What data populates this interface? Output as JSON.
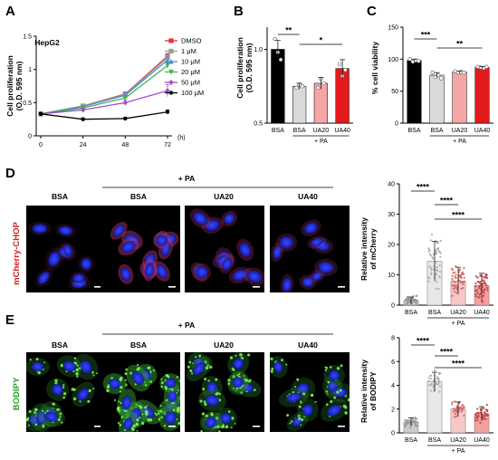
{
  "panel_labels": [
    "A",
    "B",
    "C",
    "D",
    "E"
  ],
  "chart_data": [
    {
      "panel": "A",
      "type": "line",
      "title": "HepG2",
      "xlabel": "(h)",
      "ylabel": [
        "Cell proliferation",
        "(O.D. 595 nm)"
      ],
      "x": [
        0,
        24,
        48,
        72
      ],
      "xticks": [
        "0",
        "24",
        "48",
        "72"
      ],
      "yticks": [
        "0",
        "0.5",
        "1",
        "1.5"
      ],
      "ylim": [
        0,
        1.5
      ],
      "legend_position": "right",
      "series": [
        {
          "name": "DMSO",
          "color": "#e8343a",
          "marker": "square",
          "values": [
            0.33,
            0.45,
            0.63,
            1.2
          ],
          "err": [
            0.02,
            0.02,
            0.03,
            0.04
          ]
        },
        {
          "name": "1 μM",
          "color": "#9a9a9a",
          "marker": "square",
          "values": [
            0.33,
            0.45,
            0.62,
            1.18
          ],
          "err": [
            0.02,
            0.02,
            0.03,
            0.04
          ]
        },
        {
          "name": "10 μM",
          "color": "#4a90d9",
          "marker": "triangle",
          "values": [
            0.33,
            0.44,
            0.61,
            1.14
          ],
          "err": [
            0.02,
            0.02,
            0.04,
            0.05
          ]
        },
        {
          "name": "20 μM",
          "color": "#3cb44b",
          "marker": "triangle-down",
          "values": [
            0.33,
            0.42,
            0.57,
            1.06
          ],
          "err": [
            0.02,
            0.02,
            0.03,
            0.04
          ]
        },
        {
          "name": "50 μM",
          "color": "#a64ac9",
          "marker": "diamond",
          "values": [
            0.33,
            0.39,
            0.5,
            0.68
          ],
          "err": [
            0.02,
            0.02,
            0.04,
            0.09
          ]
        },
        {
          "name": "100 μM",
          "color": "#000000",
          "marker": "circle",
          "values": [
            0.33,
            0.25,
            0.26,
            0.36
          ],
          "err": [
            0.02,
            0.02,
            0.02,
            0.03
          ]
        }
      ]
    },
    {
      "panel": "B",
      "type": "bar",
      "ylabel": [
        "Cell proliferation",
        "(O.D. 595 nm)"
      ],
      "categories": [
        "BSA",
        "BSA",
        "UA20",
        "UA40"
      ],
      "group_label": "+ PA",
      "values": [
        1.0,
        0.75,
        0.77,
        0.87
      ],
      "err": [
        0.06,
        0.02,
        0.04,
        0.06
      ],
      "colors": [
        "#000000",
        "#d9d9d9",
        "#f4a6a6",
        "#e31a1c"
      ],
      "points": [
        [
          1.07,
          0.98,
          0.93
        ],
        [
          0.74,
          0.76,
          0.75
        ],
        [
          0.74,
          0.8,
          0.77
        ],
        [
          0.9,
          0.82,
          0.86
        ]
      ],
      "yticks": [
        "0.5",
        "1.0"
      ],
      "ylim": [
        0.5,
        1.15
      ],
      "significance": [
        {
          "from": 0,
          "to": 1,
          "label": "**"
        },
        {
          "from": 1,
          "to": 3,
          "label": "*"
        }
      ]
    },
    {
      "panel": "C",
      "type": "bar",
      "ylabel": [
        "% cell viability"
      ],
      "categories": [
        "BSA",
        "BSA",
        "UA20",
        "UA40"
      ],
      "group_label": "+ PA",
      "values": [
        98,
        75,
        80,
        87
      ],
      "err": [
        2,
        4,
        1.5,
        1.5
      ],
      "colors": [
        "#000000",
        "#d9d9d9",
        "#f4a6a6",
        "#e31a1c"
      ],
      "points": [
        [
          100,
          96,
          98,
          97
        ],
        [
          79,
          72,
          75,
          70
        ],
        [
          81,
          79,
          80,
          79
        ],
        [
          88,
          87,
          86,
          88
        ]
      ],
      "yticks": [
        "0",
        "50",
        "100",
        "150"
      ],
      "ylim": [
        0,
        150
      ],
      "significance": [
        {
          "from": 0,
          "to": 1,
          "label": "***"
        },
        {
          "from": 1,
          "to": 3,
          "label": "**"
        }
      ]
    },
    {
      "panel": "D",
      "type": "bar",
      "ylabel": [
        "Relative intensity",
        "of  mCherry"
      ],
      "categories": [
        "BSA",
        "BSA",
        "UA20",
        "UA40"
      ],
      "group_label": "+ PA",
      "values": [
        1.5,
        14.5,
        8,
        6.5
      ],
      "err": [
        1.2,
        6.5,
        4.5,
        4
      ],
      "colors": [
        "#cccccc",
        "#e8e8e8",
        "#f7c7c7",
        "#f2a0a0"
      ],
      "yticks": [
        "0",
        "10",
        "20",
        "30",
        "40"
      ],
      "ylim": [
        0,
        40
      ],
      "significance": [
        {
          "from": 0,
          "to": 1,
          "label": "****"
        },
        {
          "from": 1,
          "to": 2,
          "label": "****"
        },
        {
          "from": 1,
          "to": 3,
          "label": "****"
        }
      ]
    },
    {
      "panel": "E",
      "type": "bar",
      "ylabel": [
        "Relative intensity",
        "of  BODIPY"
      ],
      "categories": [
        "BSA",
        "BSA",
        "UA20",
        "UA40"
      ],
      "group_label": "+ PA",
      "values": [
        0.9,
        4.3,
        2.0,
        1.6
      ],
      "err": [
        0.35,
        0.8,
        0.6,
        0.6
      ],
      "colors": [
        "#cccccc",
        "#e8e8e8",
        "#f7c7c7",
        "#f2a0a0"
      ],
      "yticks": [
        "0",
        "2",
        "4",
        "6",
        "8"
      ],
      "ylim": [
        0,
        8
      ],
      "significance": [
        {
          "from": 0,
          "to": 1,
          "label": "****"
        },
        {
          "from": 1,
          "to": 2,
          "label": "****"
        },
        {
          "from": 1,
          "to": 3,
          "label": "****"
        }
      ]
    }
  ],
  "micrographs": {
    "D": {
      "side_label": "mCherry-CHOP",
      "side_color": "#d02020",
      "group_label": "+ PA",
      "conditions": [
        "BSA",
        "BSA",
        "UA20",
        "UA40"
      ]
    },
    "E": {
      "side_label": "BODIPY",
      "side_color": "#2aa02a",
      "group_label": "+ PA",
      "conditions": [
        "BSA",
        "BSA",
        "UA20",
        "UA40"
      ]
    }
  }
}
